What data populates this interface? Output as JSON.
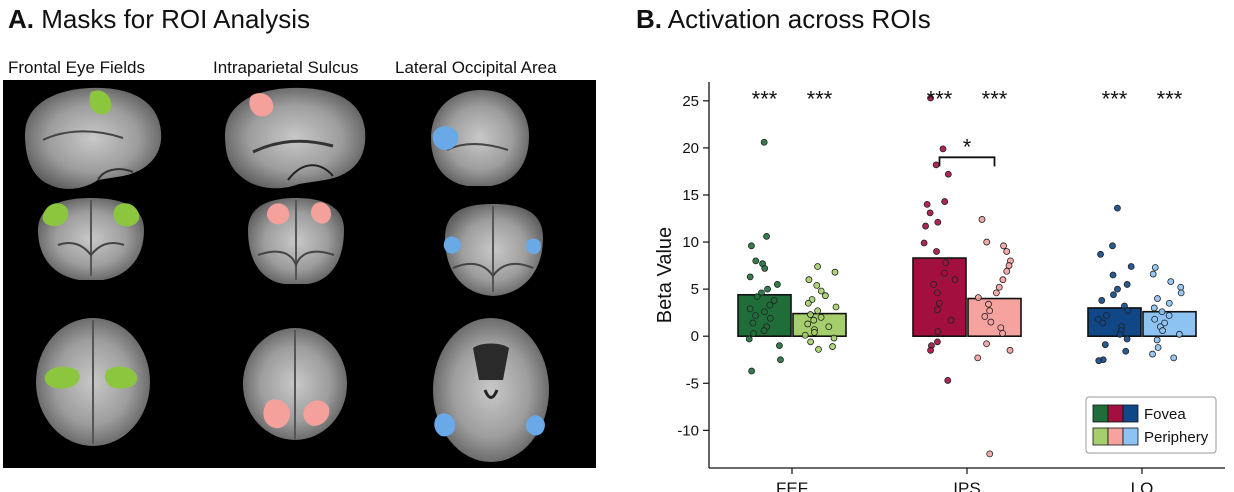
{
  "panel_a": {
    "letter": "A.",
    "title": "Masks for ROI Analysis",
    "columns": [
      "Frontal Eye Fields",
      "Intraparietal Sulcus",
      "Lateral Occipital Area"
    ]
  },
  "panel_b": {
    "letter": "B.",
    "title": "Activation across ROIs"
  },
  "colors": {
    "fef_fovea": "#1f6e3a",
    "fef_periphery": "#a5cf6c",
    "ips_fovea": "#a3103f",
    "ips_periphery": "#f6a29f",
    "lo_fovea": "#0f4787",
    "lo_periphery": "#8cc3f3",
    "fef_mask": "#8cc63f",
    "ips_mask": "#f4a19c",
    "lo_mask": "#6aa9e8"
  },
  "chart_data": {
    "type": "bar",
    "categories": [
      "FEF",
      "IPS",
      "LO"
    ],
    "ylabel": "Beta Value",
    "ylim": [
      -14,
      27
    ],
    "yticks": [
      -10,
      -5,
      0,
      5,
      10,
      15,
      20,
      25
    ],
    "series": [
      {
        "name": "Fovea",
        "values": [
          4.4,
          8.3,
          3.0
        ]
      },
      {
        "name": "Periphery",
        "values": [
          2.4,
          4.0,
          2.6
        ]
      }
    ],
    "significance_labels": [
      "***",
      "***",
      "***",
      "***",
      "***",
      "***"
    ],
    "bracket": {
      "between": "IPS Fovea vs IPS Periphery",
      "label": "*"
    },
    "legend": {
      "placement": "bottom-right",
      "entries": [
        "Fovea",
        "Periphery"
      ]
    },
    "points": {
      "FEF_Fovea": [
        20.6,
        10.6,
        9.6,
        8.0,
        7.7,
        7.2,
        6.3,
        5.5,
        5.0,
        4.6,
        4.2,
        3.8,
        3.3,
        2.9,
        2.6,
        2.2,
        1.9,
        1.4,
        1.0,
        0.6,
        0.3,
        -0.3,
        -1.0,
        -2.5,
        -3.7
      ],
      "FEF_Periphery": [
        7.4,
        6.8,
        6.0,
        5.4,
        4.8,
        4.3,
        3.9,
        3.5,
        3.1,
        2.7,
        2.3,
        2.0,
        1.7,
        1.3,
        1.0,
        0.7,
        0.4,
        0.1,
        -0.2,
        -0.6,
        -1.1,
        -1.4
      ],
      "IPS_Fovea": [
        25.3,
        19.9,
        18.2,
        17.2,
        14.3,
        14.0,
        13.1,
        12.1,
        11.7,
        9.9,
        9.0,
        7.8,
        6.7,
        6.0,
        5.5,
        4.6,
        3.5,
        2.8,
        1.7,
        0.5,
        -0.6,
        -1.0,
        -1.5,
        -4.7
      ],
      "IPS_Periphery": [
        12.4,
        10.0,
        9.6,
        9.0,
        8.0,
        7.5,
        6.9,
        6.0,
        5.2,
        4.6,
        4.1,
        3.4,
        2.7,
        2.1,
        1.5,
        0.9,
        0.3,
        -0.8,
        -1.5,
        -2.3,
        -12.5
      ],
      "LO_Fovea": [
        13.6,
        9.6,
        8.7,
        7.4,
        6.5,
        5.5,
        5.0,
        4.4,
        3.8,
        3.2,
        2.7,
        2.2,
        1.8,
        1.4,
        1.0,
        0.6,
        0.2,
        -0.3,
        -0.9,
        -1.6,
        -2.5,
        -2.6
      ],
      "LO_Periphery": [
        7.3,
        6.6,
        5.8,
        5.2,
        4.6,
        4.0,
        3.5,
        3.0,
        2.6,
        2.2,
        1.8,
        1.4,
        1.0,
        0.6,
        0.2,
        -0.4,
        -1.2,
        -1.9,
        -2.3
      ]
    }
  }
}
